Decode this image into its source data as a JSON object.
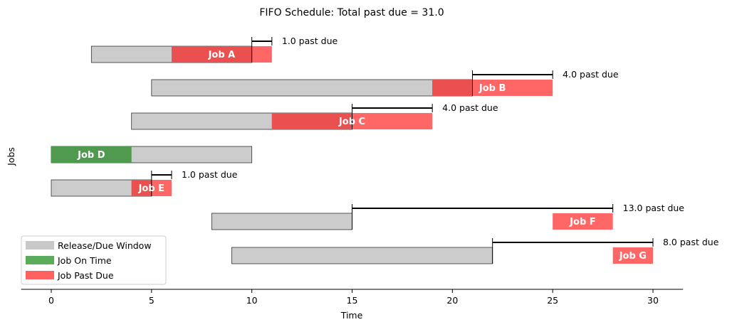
{
  "chart_data": {
    "type": "gantt",
    "title": "FIFO Schedule: Total past due = 31.0",
    "xlabel": "Time",
    "ylabel": "Jobs",
    "xlim": [
      -1.5,
      31.5
    ],
    "xticks": [
      0,
      5,
      10,
      15,
      20,
      25,
      30
    ],
    "grid": false,
    "legend_position": "lower-left",
    "jobs": [
      {
        "label": "Job A",
        "release": 2,
        "due": 10,
        "start": 6,
        "finish": 11,
        "on_time": false,
        "past_due_label": "1.0 past due"
      },
      {
        "label": "Job B",
        "release": 5,
        "due": 21,
        "start": 19,
        "finish": 25,
        "on_time": false,
        "past_due_label": "4.0 past due"
      },
      {
        "label": "Job C",
        "release": 4,
        "due": 15,
        "start": 11,
        "finish": 19,
        "on_time": false,
        "past_due_label": "4.0 past due"
      },
      {
        "label": "Job D",
        "release": 0,
        "due": 10,
        "start": 0,
        "finish": 4,
        "on_time": true,
        "past_due_label": ""
      },
      {
        "label": "Job E",
        "release": 0,
        "due": 5,
        "start": 4,
        "finish": 6,
        "on_time": false,
        "past_due_label": "1.0 past due"
      },
      {
        "label": "Job F",
        "release": 8,
        "due": 15,
        "start": 25,
        "finish": 28,
        "on_time": false,
        "past_due_label": "13.0 past due"
      },
      {
        "label": "Job G",
        "release": 9,
        "due": 22,
        "start": 28,
        "finish": 30,
        "on_time": false,
        "past_due_label": "8.0 past due"
      }
    ],
    "legend": [
      {
        "label": "Release/Due Window",
        "color": "#c8c8c8"
      },
      {
        "label": "Job On Time",
        "color": "#5aac5a"
      },
      {
        "label": "Job Past Due",
        "color": "#ff6060"
      }
    ],
    "colors": {
      "window": "#cccccc",
      "on_time": "#4f9a4f",
      "past_due": "#ff6464",
      "overlap": "#ea5050"
    }
  }
}
